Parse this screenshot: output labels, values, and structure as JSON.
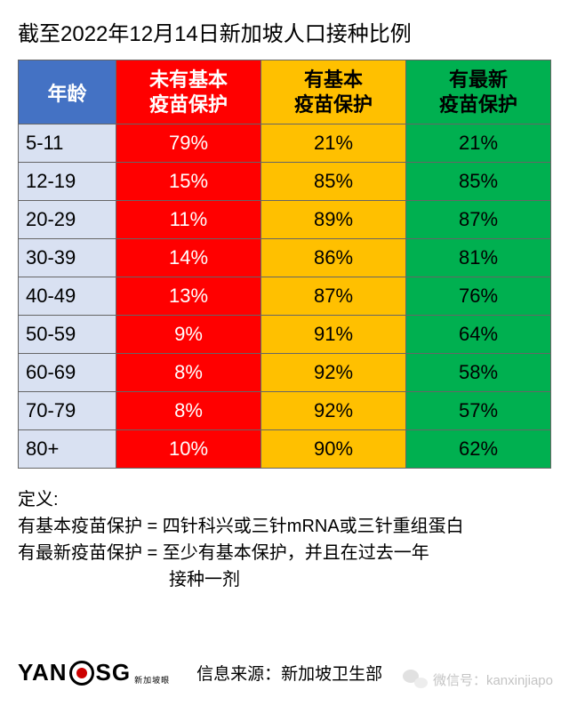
{
  "title": "截至2022年12月14日新加坡人口接种比例",
  "headers": {
    "age": "年龄",
    "none_l1": "未有基本",
    "none_l2": "疫苗保护",
    "basic_l1": "有基本",
    "basic_l2": "疫苗保护",
    "latest_l1": "有最新",
    "latest_l2": "疫苗保护"
  },
  "columns": {
    "age_bg": "#d9e1f2",
    "age_header_bg": "#4472c4",
    "none_bg": "#ff0000",
    "basic_bg": "#ffc000",
    "latest_bg": "#00b050"
  },
  "rows": [
    {
      "age": "5-11",
      "none": "79%",
      "basic": "21%",
      "latest": "21%"
    },
    {
      "age": "12-19",
      "none": "15%",
      "basic": "85%",
      "latest": "85%"
    },
    {
      "age": "20-29",
      "none": "11%",
      "basic": "89%",
      "latest": "87%"
    },
    {
      "age": "30-39",
      "none": "14%",
      "basic": "86%",
      "latest": "81%"
    },
    {
      "age": "40-49",
      "none": "13%",
      "basic": "87%",
      "latest": "76%"
    },
    {
      "age": "50-59",
      "none": "9%",
      "basic": "91%",
      "latest": "64%"
    },
    {
      "age": "60-69",
      "none": "8%",
      "basic": "92%",
      "latest": "58%"
    },
    {
      "age": "70-79",
      "none": "8%",
      "basic": "92%",
      "latest": "57%"
    },
    {
      "age": "80+",
      "none": "10%",
      "basic": "90%",
      "latest": "62%"
    }
  ],
  "definitions": {
    "label": "定义:",
    "line1": "有基本疫苗保护 = 四针科兴或三针mRNA或三针重组蛋白",
    "line2a": "有最新疫苗保护 = 至少有基本保护，并且在过去一年",
    "line2b": "接种一剂"
  },
  "logo": {
    "part1": "YAN",
    "part2": "SG",
    "sub": "新加坡眼"
  },
  "source": "信息来源：新加坡卫生部",
  "watermark": "微信号：kanxinjiapo"
}
